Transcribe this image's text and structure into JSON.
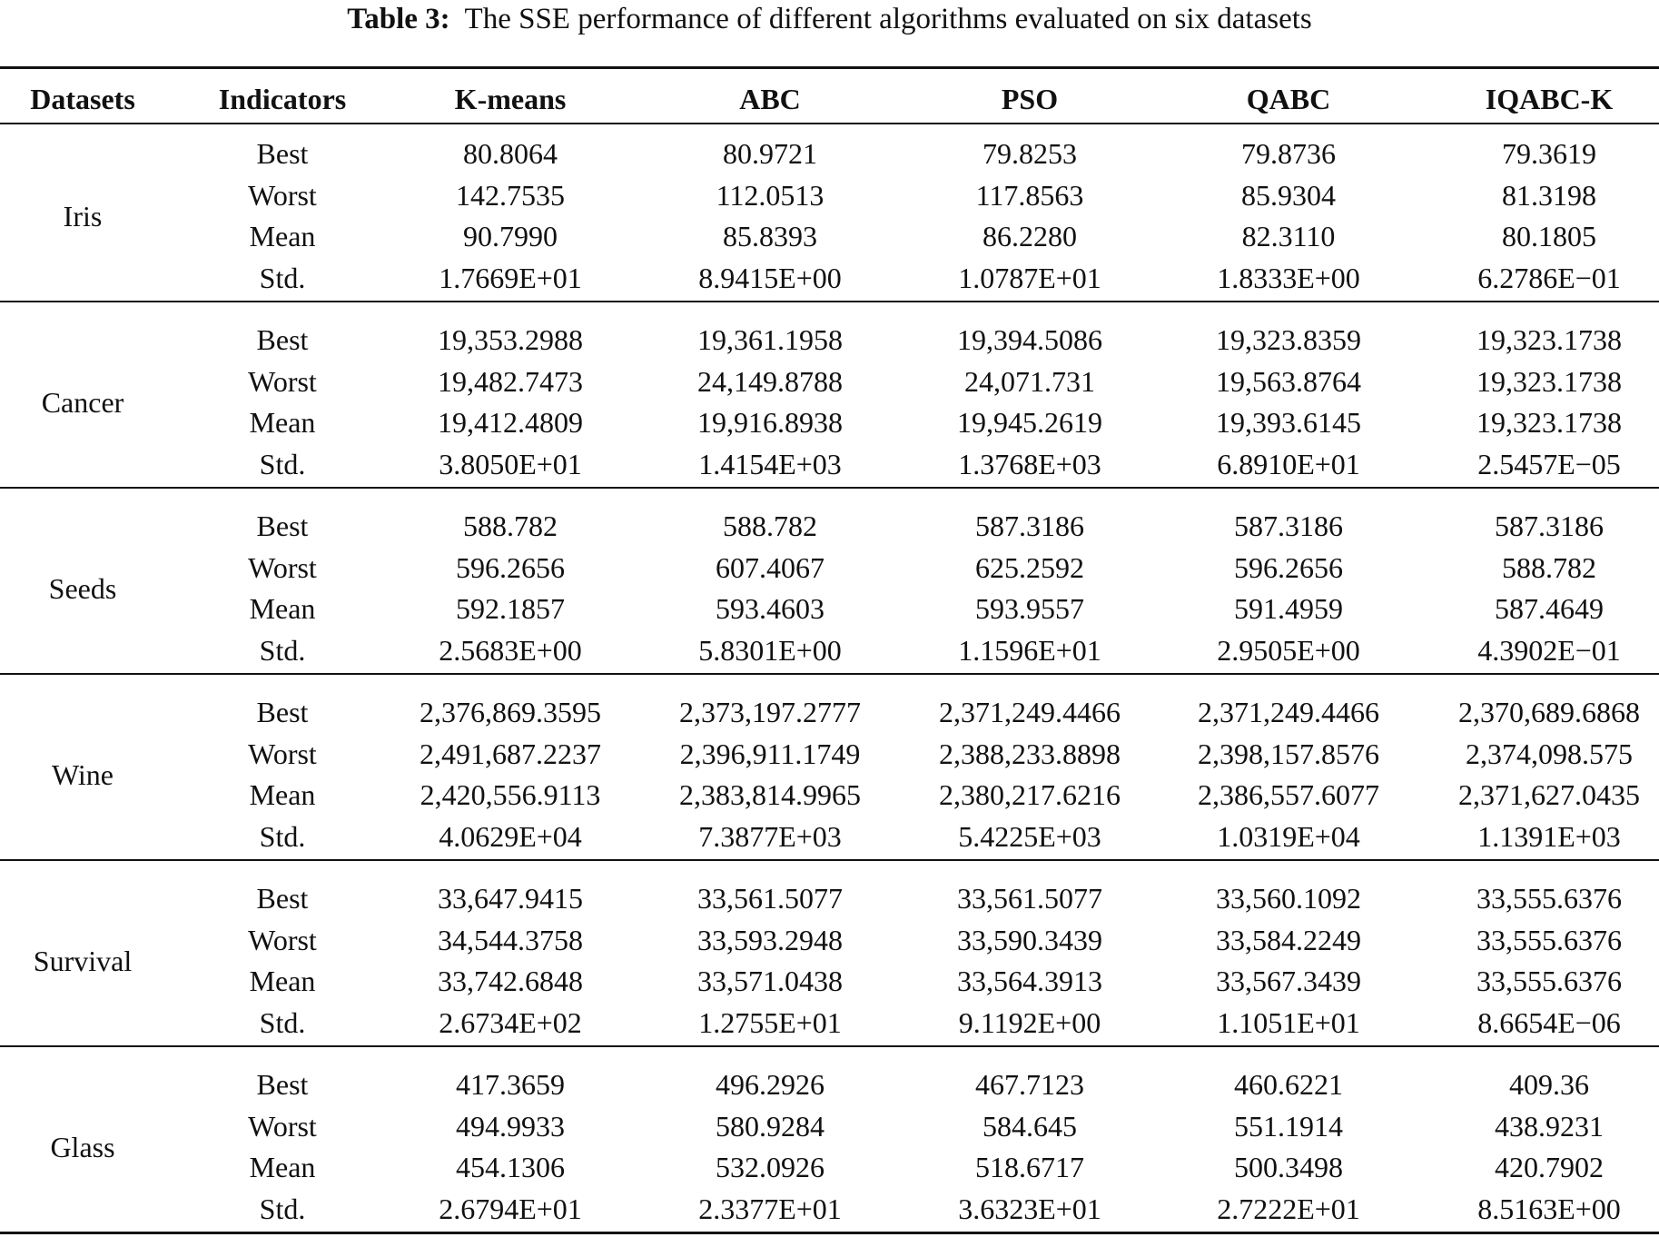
{
  "caption": {
    "label": "Table 3:",
    "text": "The SSE performance of different algorithms evaluated on six datasets"
  },
  "headers": [
    "Datasets",
    "Indicators",
    "K-means",
    "ABC",
    "PSO",
    "QABC",
    "IQABC-K"
  ],
  "groups": [
    {
      "dataset": "Iris",
      "rows": [
        [
          "Best",
          "80.8064",
          "80.9721",
          "79.8253",
          "79.8736",
          "79.3619"
        ],
        [
          "Worst",
          "142.7535",
          "112.0513",
          "117.8563",
          "85.9304",
          "81.3198"
        ],
        [
          "Mean",
          "90.7990",
          "85.8393",
          "86.2280",
          "82.3110",
          "80.1805"
        ],
        [
          "Std.",
          "1.7669E+01",
          "8.9415E+00",
          "1.0787E+01",
          "1.8333E+00",
          "6.2786E−01"
        ]
      ]
    },
    {
      "dataset": "Cancer",
      "rows": [
        [
          "Best",
          "19,353.2988",
          "19,361.1958",
          "19,394.5086",
          "19,323.8359",
          "19,323.1738"
        ],
        [
          "Worst",
          "19,482.7473",
          "24,149.8788",
          "24,071.731",
          "19,563.8764",
          "19,323.1738"
        ],
        [
          "Mean",
          "19,412.4809",
          "19,916.8938",
          "19,945.2619",
          "19,393.6145",
          "19,323.1738"
        ],
        [
          "Std.",
          "3.8050E+01",
          "1.4154E+03",
          "1.3768E+03",
          "6.8910E+01",
          "2.5457E−05"
        ]
      ]
    },
    {
      "dataset": "Seeds",
      "rows": [
        [
          "Best",
          "588.782",
          "588.782",
          "587.3186",
          "587.3186",
          "587.3186"
        ],
        [
          "Worst",
          "596.2656",
          "607.4067",
          "625.2592",
          "596.2656",
          "588.782"
        ],
        [
          "Mean",
          "592.1857",
          "593.4603",
          "593.9557",
          "591.4959",
          "587.4649"
        ],
        [
          "Std.",
          "2.5683E+00",
          "5.8301E+00",
          "1.1596E+01",
          "2.9505E+00",
          "4.3902E−01"
        ]
      ]
    },
    {
      "dataset": "Wine",
      "rows": [
        [
          "Best",
          "2,376,869.3595",
          "2,373,197.2777",
          "2,371,249.4466",
          "2,371,249.4466",
          "2,370,689.6868"
        ],
        [
          "Worst",
          "2,491,687.2237",
          "2,396,911.1749",
          "2,388,233.8898",
          "2,398,157.8576",
          "2,374,098.575"
        ],
        [
          "Mean",
          "2,420,556.9113",
          "2,383,814.9965",
          "2,380,217.6216",
          "2,386,557.6077",
          "2,371,627.0435"
        ],
        [
          "Std.",
          "4.0629E+04",
          "7.3877E+03",
          "5.4225E+03",
          "1.0319E+04",
          "1.1391E+03"
        ]
      ]
    },
    {
      "dataset": "Survival",
      "rows": [
        [
          "Best",
          "33,647.9415",
          "33,561.5077",
          "33,561.5077",
          "33,560.1092",
          "33,555.6376"
        ],
        [
          "Worst",
          "34,544.3758",
          "33,593.2948",
          "33,590.3439",
          "33,584.2249",
          "33,555.6376"
        ],
        [
          "Mean",
          "33,742.6848",
          "33,571.0438",
          "33,564.3913",
          "33,567.3439",
          "33,555.6376"
        ],
        [
          "Std.",
          "2.6734E+02",
          "1.2755E+01",
          "9.1192E+00",
          "1.1051E+01",
          "8.6654E−06"
        ]
      ]
    },
    {
      "dataset": "Glass",
      "rows": [
        [
          "Best",
          "417.3659",
          "496.2926",
          "467.7123",
          "460.6221",
          "409.36"
        ],
        [
          "Worst",
          "494.9933",
          "580.9284",
          "584.645",
          "551.1914",
          "438.9231"
        ],
        [
          "Mean",
          "454.1306",
          "532.0926",
          "518.6717",
          "500.3498",
          "420.7902"
        ],
        [
          "Std.",
          "2.6794E+01",
          "2.3377E+01",
          "3.6323E+01",
          "2.7222E+01",
          "8.5163E+00"
        ]
      ]
    }
  ]
}
